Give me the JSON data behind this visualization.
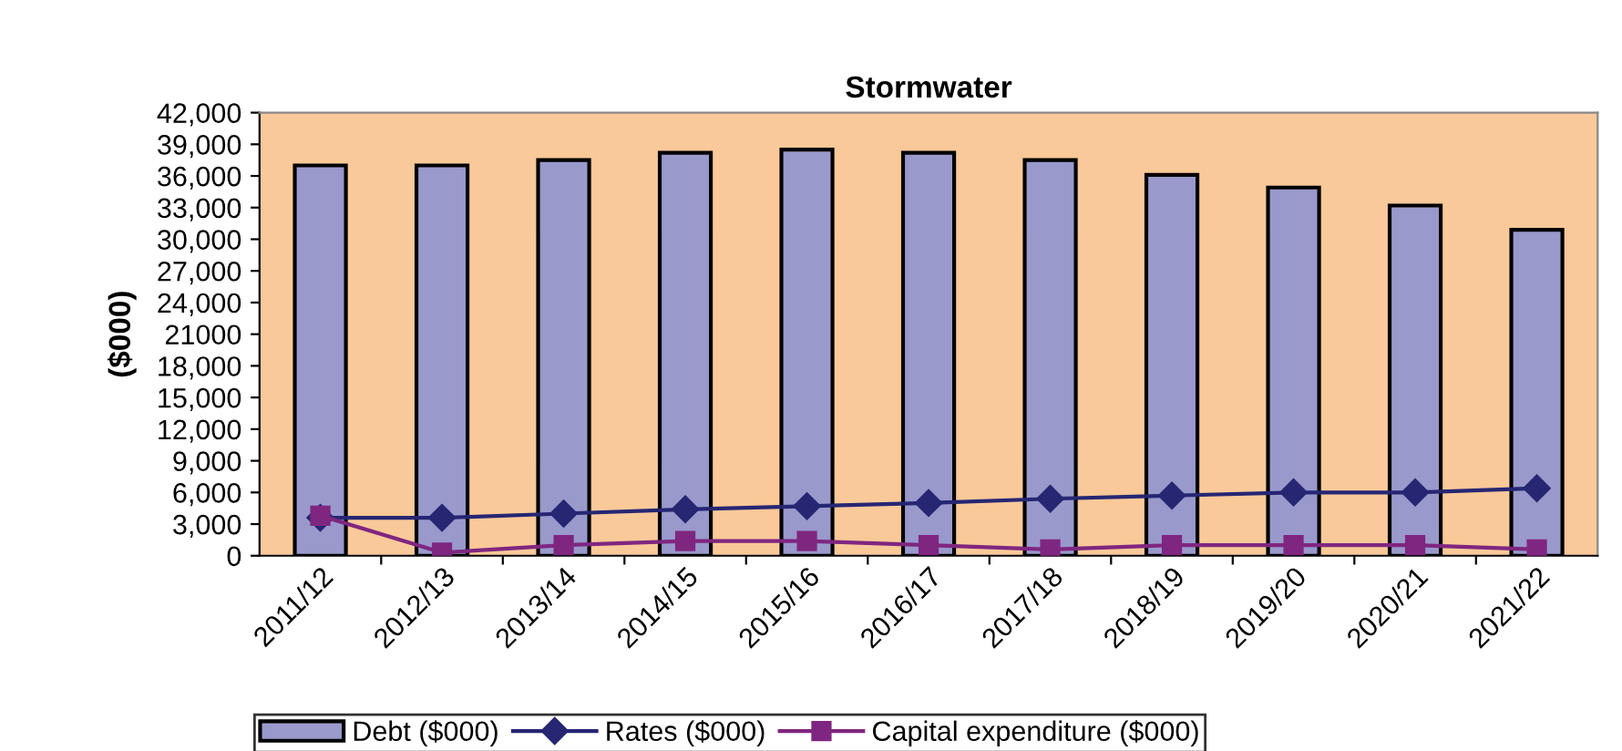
{
  "chart_data": {
    "type": "bar",
    "title": "Stormwater",
    "ylabel": "($000)",
    "categories": [
      "2011/12",
      "2012/13",
      "2013/14",
      "2014/15",
      "2015/16",
      "2016/17",
      "2017/18",
      "2018/19",
      "2019/20",
      "2020/21",
      "2021/22"
    ],
    "series": [
      {
        "name": "Debt ($000)",
        "color": "#9999cc",
        "values": [
          37000,
          37000,
          37500,
          38200,
          38500,
          38200,
          37500,
          36100,
          34900,
          33200,
          30900
        ]
      },
      {
        "name": "Rates ($000)",
        "type": "line",
        "marker": "diamond",
        "color": "#262673",
        "values": [
          3600,
          3600,
          4000,
          4400,
          4700,
          5000,
          5400,
          5700,
          6000,
          6000,
          6400
        ]
      },
      {
        "name": "Capital expenditure ($000)",
        "type": "line",
        "marker": "square",
        "color": "#7f2680",
        "values": [
          3800,
          300,
          1000,
          1400,
          1400,
          1000,
          600,
          1000,
          1000,
          1000,
          600
        ]
      }
    ],
    "ylim": [
      0,
      42000
    ],
    "yticks": [
      0,
      {
        "value": 3000,
        "label": "3,000"
      },
      {
        "value": 6000,
        "label": "6,000"
      },
      {
        "value": 9000,
        "label": "9,000"
      },
      {
        "value": 12000,
        "label": "12,000"
      },
      {
        "value": 15000,
        "label": "15,000"
      },
      {
        "value": 18000,
        "label": "18,000"
      },
      21000,
      {
        "value": 24000,
        "label": "24,000"
      },
      {
        "value": 27000,
        "label": "27,000"
      },
      {
        "value": 30000,
        "label": "30,000"
      },
      {
        "value": 33000,
        "label": "33,000"
      },
      {
        "value": 36000,
        "label": "36,000"
      },
      {
        "value": 39000,
        "label": "39,000"
      },
      {
        "value": 42000,
        "label": "42,000"
      }
    ],
    "grid": false,
    "legend": "bottom"
  }
}
